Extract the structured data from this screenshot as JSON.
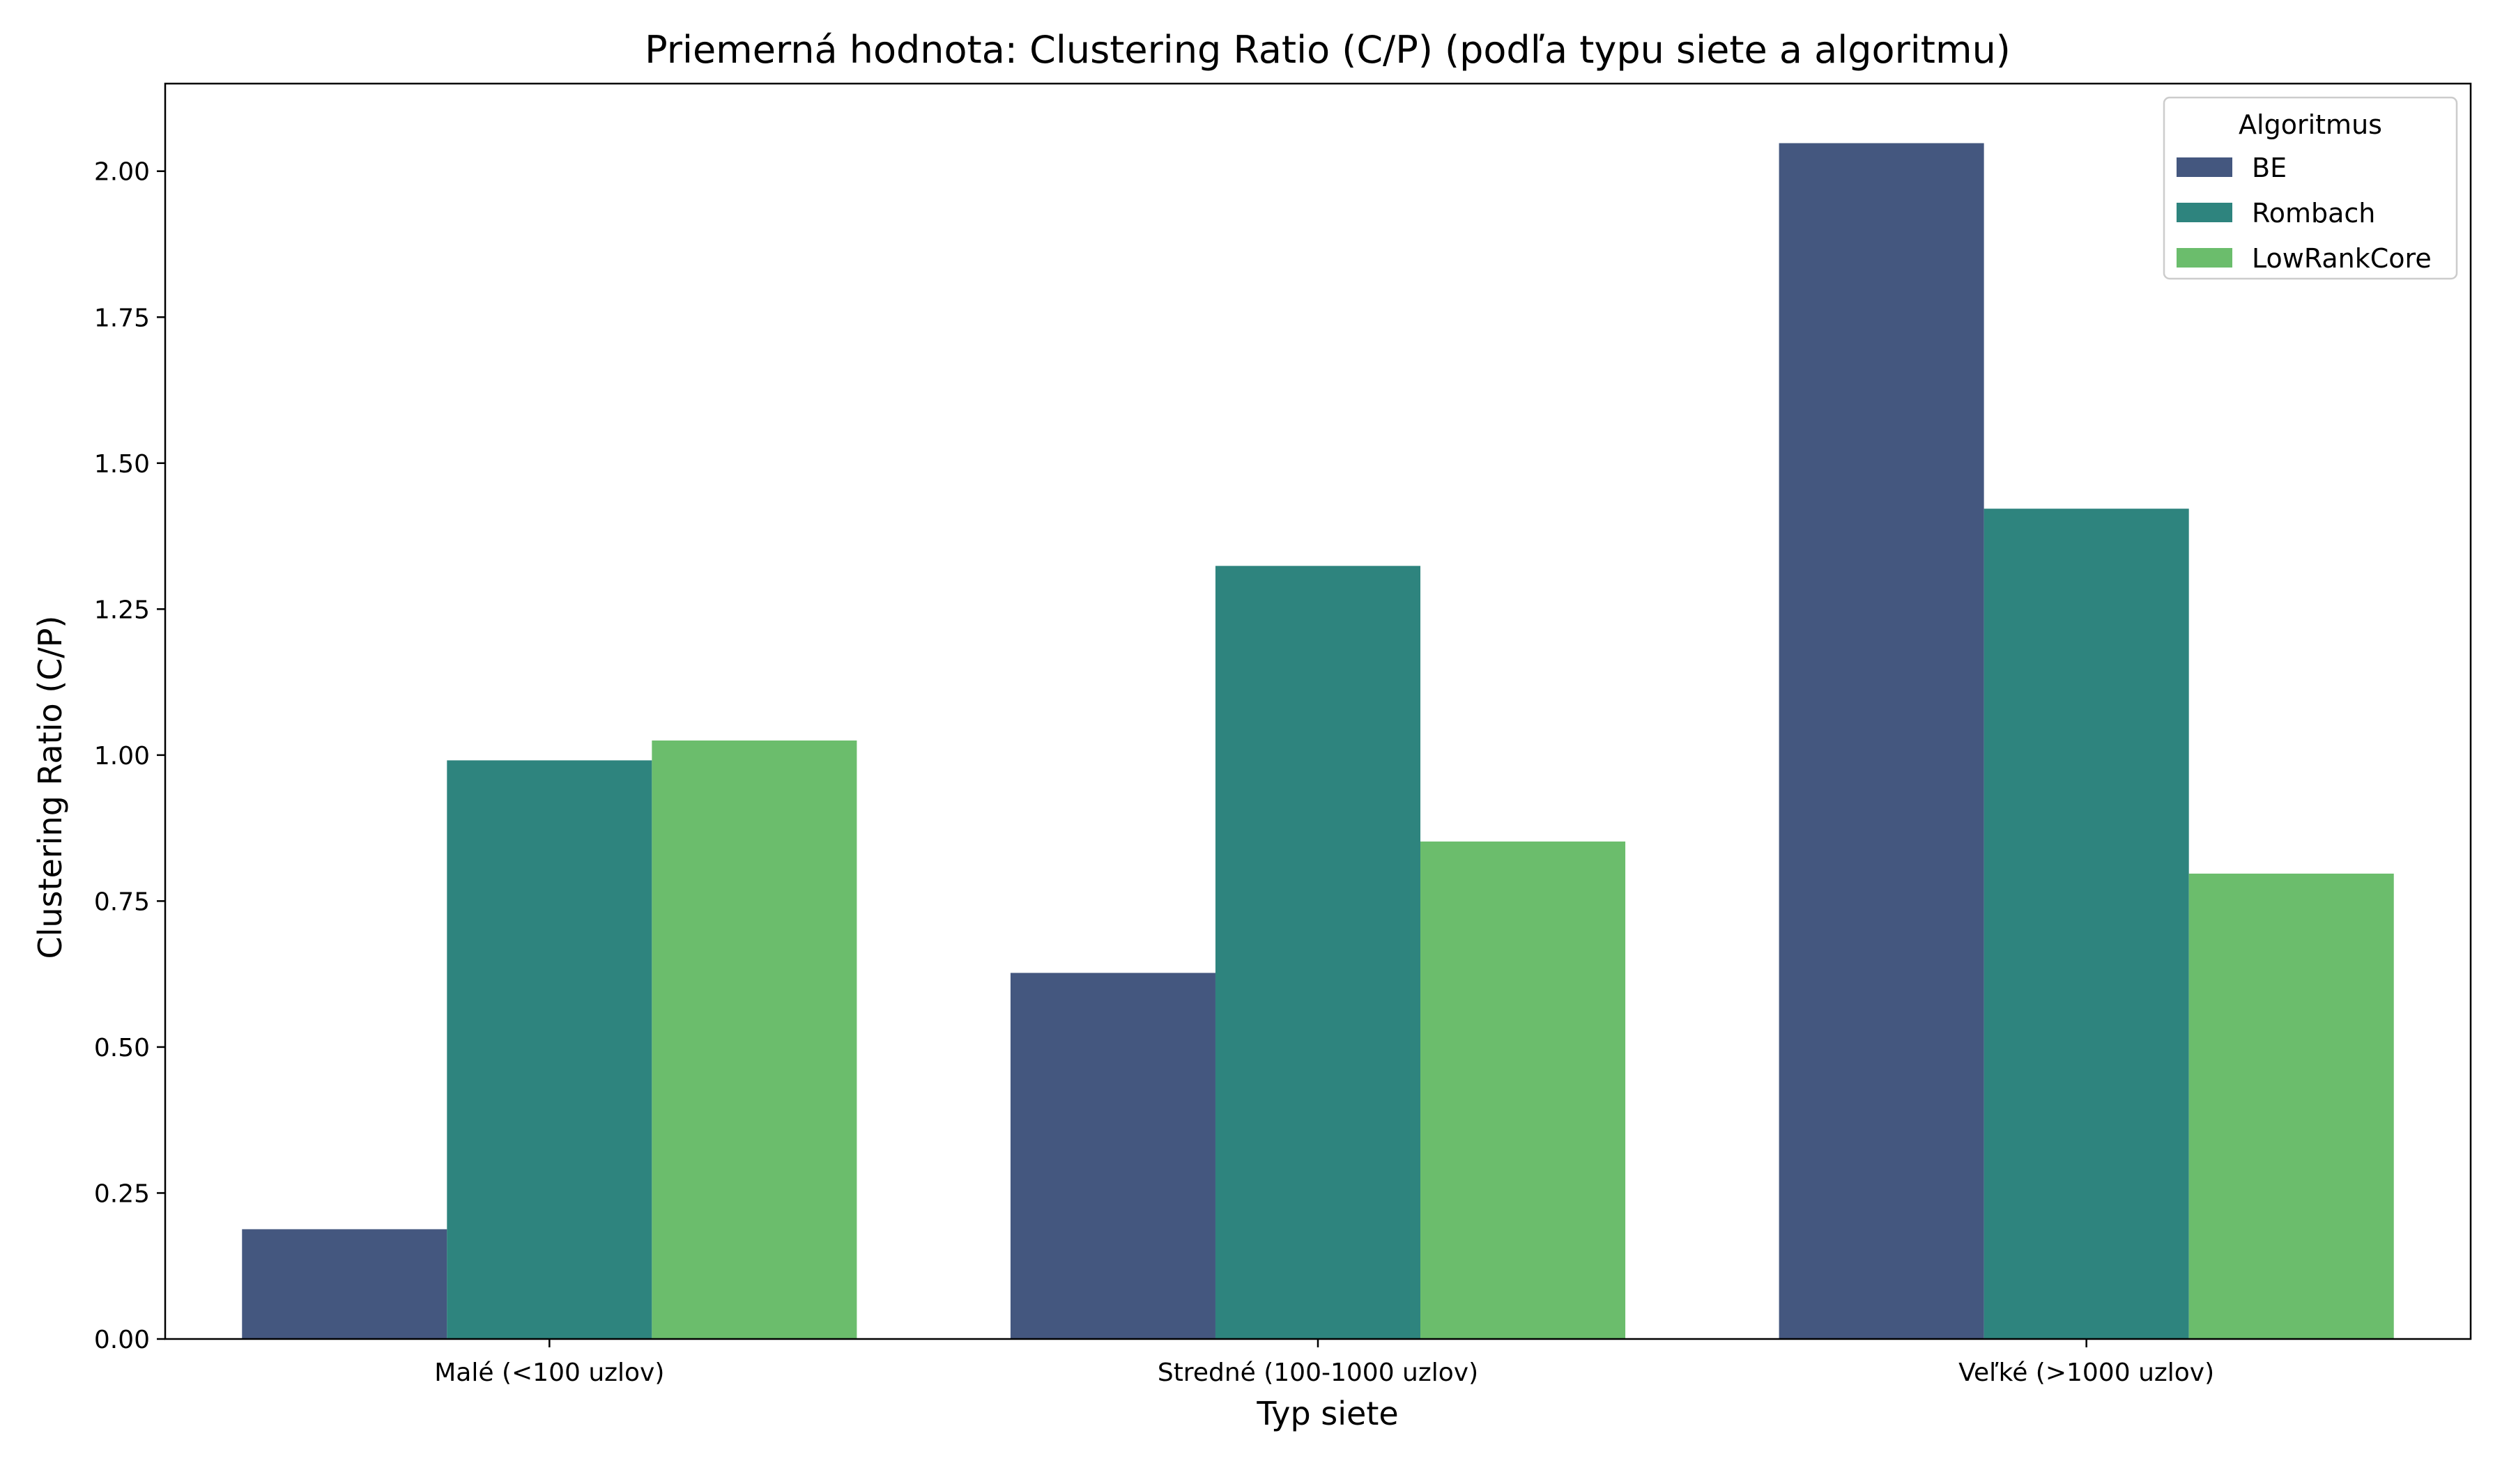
{
  "chart_data": {
    "type": "bar",
    "title": "Priemerná hodnota: Clustering Ratio (C/P) (podľa typu siete a algoritmu)",
    "xlabel": "Typ siete",
    "ylabel": "Clustering Ratio (C/P)",
    "categories": [
      "Malé (<100 uzlov)",
      "Stredné (100-1000 uzlov)",
      "Veľké (>1000 uzlov)"
    ],
    "series": [
      {
        "name": "BE",
        "color": "#44577f",
        "values": [
          0.188,
          0.627,
          2.048
        ]
      },
      {
        "name": "Rombach",
        "color": "#2e847e",
        "values": [
          0.991,
          1.324,
          1.422
        ]
      },
      {
        "name": "LowRankCore",
        "color": "#6bbd6c",
        "values": [
          1.025,
          0.852,
          0.797
        ]
      }
    ],
    "ylim": [
      0,
      2.15
    ],
    "yticks": [
      0,
      0.25,
      0.5,
      0.75,
      1.0,
      1.25,
      1.5,
      1.75,
      2.0
    ],
    "ytick_labels": [
      "0.00",
      "0.25",
      "0.50",
      "0.75",
      "1.00",
      "1.25",
      "1.50",
      "1.75",
      "2.00"
    ],
    "legend": {
      "title": "Algoritmus",
      "placement": "top-right"
    },
    "grid": false
  }
}
